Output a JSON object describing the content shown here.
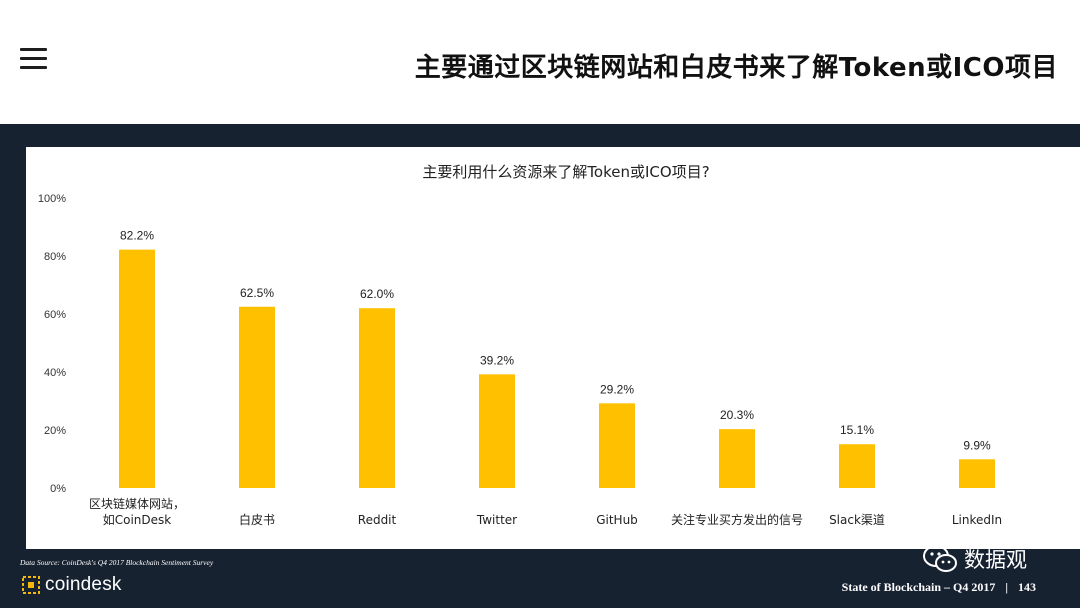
{
  "header": {
    "title": "主要通过区块链网站和白皮书来了解Token或ICO项目"
  },
  "chart_data": {
    "type": "bar",
    "title": "主要利用什么资源来了解Token或ICO项目?",
    "categories": [
      "区块链媒体网站，\n如CoinDesk",
      "白皮书",
      "Reddit",
      "Twitter",
      "GitHub",
      "关注专业买方发出的信号",
      "Slack渠道",
      "LinkedIn"
    ],
    "values": [
      82.2,
      62.5,
      62.0,
      39.2,
      29.2,
      20.3,
      15.1,
      9.9
    ],
    "value_labels": [
      "82.2%",
      "62.5%",
      "62.0%",
      "39.2%",
      "29.2%",
      "20.3%",
      "15.1%",
      "9.9%"
    ],
    "yticks": [
      "0%",
      "20%",
      "40%",
      "60%",
      "80%",
      "100%"
    ],
    "ylim": [
      0,
      100
    ],
    "xlabel": "",
    "ylabel": "",
    "grid": false,
    "legend": "none",
    "bar_color": "#FFC000"
  },
  "footer": {
    "source": "Data Source: CoinDesk's Q4 2017 Blockchain Sentiment Survey",
    "brand": "coindesk",
    "report": "State of Blockchain – Q4 2017",
    "separator": "|",
    "page": "143"
  },
  "watermark": {
    "account": "数据观"
  },
  "colors": {
    "dark_background": "#172231",
    "bar": "#FFC000",
    "title_text": "#111111"
  }
}
